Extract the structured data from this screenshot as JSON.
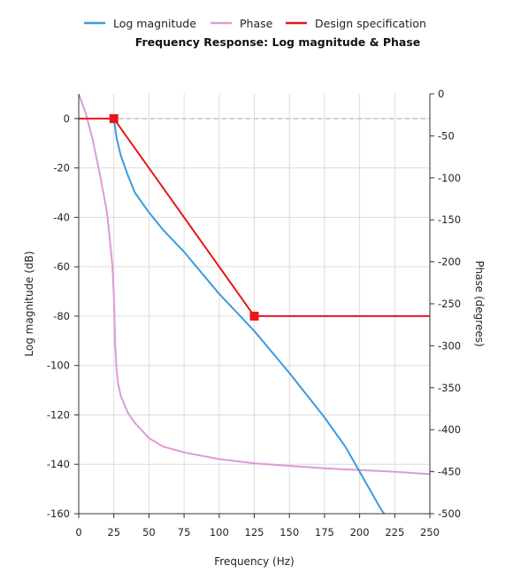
{
  "chart_data": {
    "type": "line",
    "title": "Frequency Response: Log magnitude & Phase",
    "xlabel": "Frequency (Hz)",
    "ylabel_left": "Log magnitude (dB)",
    "ylabel_right": "Phase (degrees)",
    "xlim": [
      0,
      250
    ],
    "ylim_left": [
      -160,
      10
    ],
    "ylim_right": [
      -500,
      0
    ],
    "grid": true,
    "legend_position": "top",
    "x_ticks": [
      0,
      25,
      50,
      75,
      100,
      125,
      150,
      175,
      200,
      225,
      250
    ],
    "y_left_ticks": [
      0,
      -20,
      -40,
      -60,
      -80,
      -100,
      -120,
      -140,
      -160
    ],
    "y_right_ticks": [
      0,
      -50,
      -100,
      -150,
      -200,
      -250,
      -300,
      -350,
      -400,
      -450,
      -500
    ],
    "reference_line": {
      "axis": "left",
      "y": 0,
      "style": "dashed",
      "color": "#bbbbbb"
    },
    "series": [
      {
        "name": "Log magnitude",
        "axis": "left",
        "color": "#3b9ae1",
        "x": [
          25,
          27,
          30,
          35,
          40,
          50,
          60,
          75,
          100,
          125,
          150,
          175,
          190,
          200,
          205,
          210,
          215,
          220
        ],
        "y": [
          0,
          -8,
          -15,
          -23,
          -30,
          -38,
          -45,
          -54,
          -71,
          -86,
          -103,
          -121,
          -133,
          -143,
          -148,
          -153,
          -158,
          -162
        ]
      },
      {
        "name": "Phase",
        "axis": "right",
        "color": "#dd9ad6",
        "x": [
          0,
          5,
          10,
          15,
          20,
          22,
          24,
          25,
          26,
          27,
          28,
          30,
          35,
          40,
          50,
          60,
          75,
          100,
          125,
          150,
          175,
          200,
          225,
          250
        ],
        "y": [
          0,
          -23,
          -55,
          -95,
          -140,
          -170,
          -205,
          -240,
          -300,
          -330,
          -345,
          -360,
          -380,
          -392,
          -410,
          -420,
          -427,
          -435,
          -440,
          -443,
          -446,
          -448,
          -450,
          -453
        ]
      },
      {
        "name": "Design specification",
        "axis": "left",
        "color": "#e8161e",
        "markers": [
          1,
          2
        ],
        "x": [
          0,
          25,
          125,
          250
        ],
        "y": [
          0,
          0,
          -80,
          -80
        ]
      }
    ]
  }
}
